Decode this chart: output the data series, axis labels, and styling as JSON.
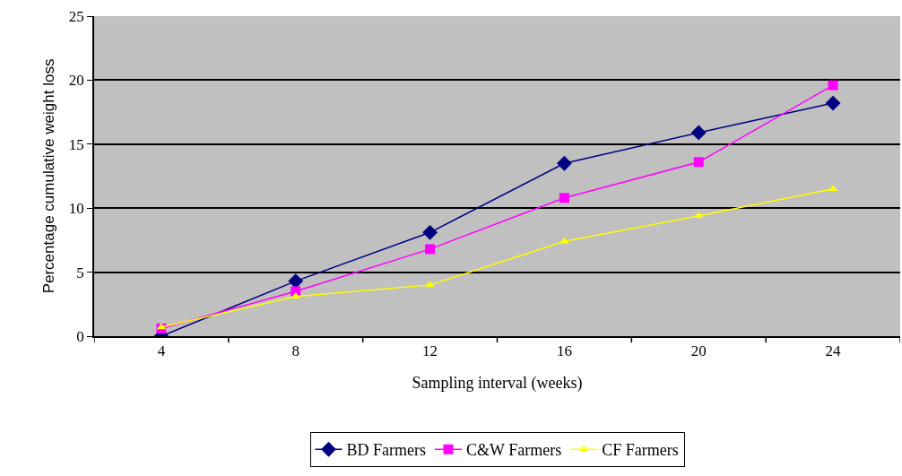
{
  "chart_data": {
    "type": "line",
    "xlabel": "Sampling interval (weeks)",
    "ylabel": "Percentage cumulative weight loss",
    "categories": [
      "4",
      "8",
      "12",
      "16",
      "20",
      "24"
    ],
    "series": [
      {
        "name": "BD Farmers",
        "color": "#000080",
        "marker": "diamond",
        "values": [
          0,
          4.3,
          8.1,
          13.5,
          15.9,
          18.2
        ]
      },
      {
        "name": "C&W Farmers",
        "color": "#ff00ff",
        "marker": "square",
        "values": [
          0.6,
          3.5,
          6.8,
          10.8,
          13.6,
          19.6
        ]
      },
      {
        "name": "CF Farmers",
        "color": "#ffff00",
        "marker": "triangle",
        "values": [
          0.7,
          3.1,
          4.0,
          7.4,
          9.4,
          11.5
        ]
      }
    ],
    "ylim": [
      0,
      25
    ],
    "yticks": [
      0,
      5,
      10,
      15,
      20,
      25
    ],
    "grid": "y",
    "legend": "bottom",
    "line_style": "solid"
  }
}
